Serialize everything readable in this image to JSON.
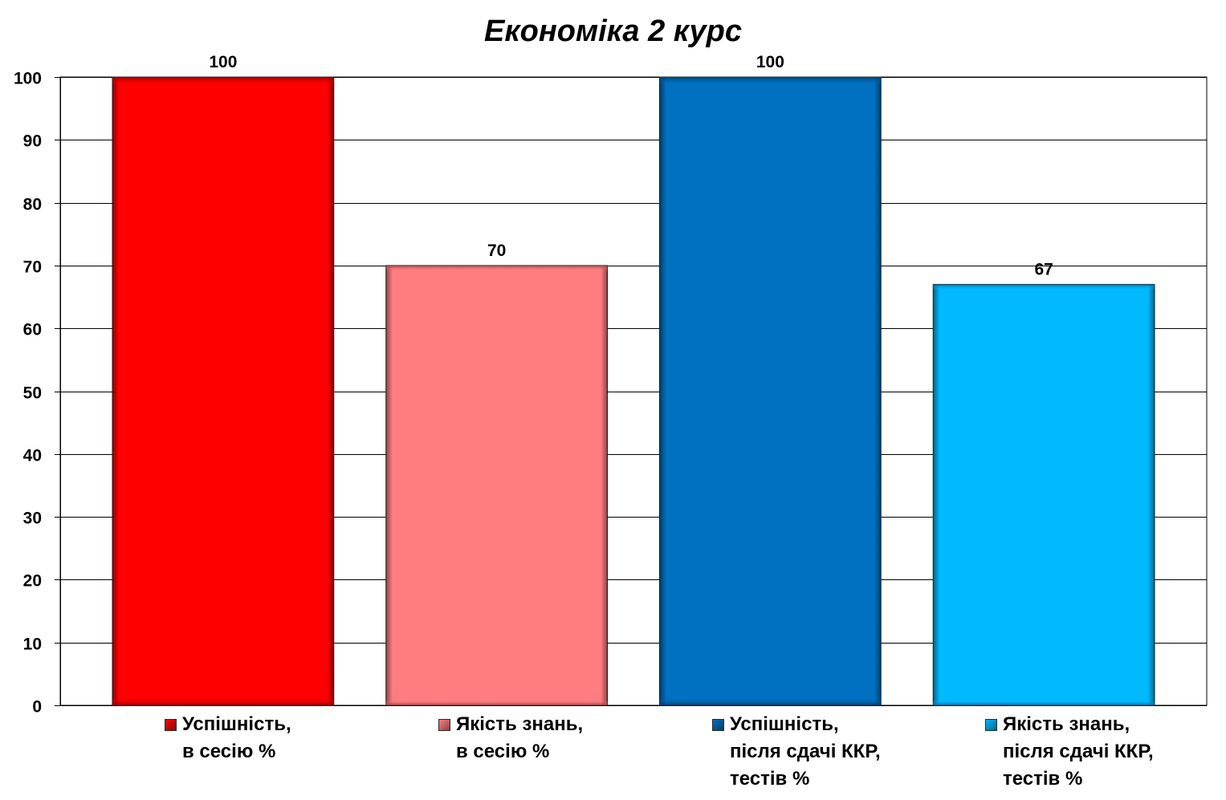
{
  "chart_data": {
    "type": "bar",
    "title": "Економіка 2 курс",
    "xlabel": "",
    "ylabel": "",
    "ylim": [
      0,
      100
    ],
    "yticks": [
      0,
      10,
      20,
      30,
      40,
      50,
      60,
      70,
      80,
      90,
      100
    ],
    "grid": true,
    "legend_position": "bottom",
    "data_labels": true,
    "series": [
      {
        "name": "Успішність,\nв сесію %",
        "values": [
          100
        ],
        "color": "#FF0000"
      },
      {
        "name": "Якість знань,\nв сесію %",
        "values": [
          70
        ],
        "color": "#FF7C80"
      },
      {
        "name": "Успішність,\nпісля сдачі ККР,\nтестів %",
        "values": [
          100
        ],
        "color": "#0070C0"
      },
      {
        "name": "Якість знань,\nпісля сдачі ККР,\nтестів %",
        "values": [
          67
        ],
        "color": "#00B9FF"
      }
    ]
  }
}
